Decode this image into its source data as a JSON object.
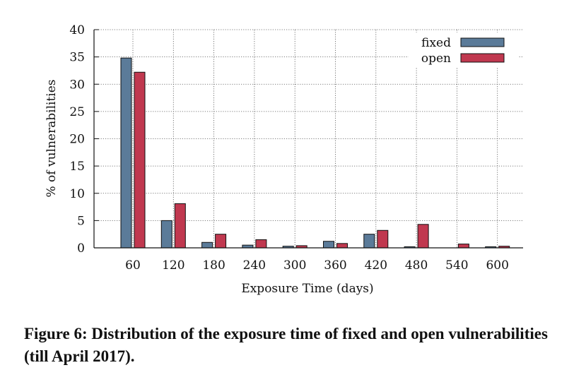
{
  "chart_data": {
    "type": "bar",
    "categories": [
      "60",
      "120",
      "180",
      "240",
      "300",
      "360",
      "420",
      "480",
      "540",
      "600"
    ],
    "series": [
      {
        "name": "fixed",
        "color": "#5b7b99",
        "values": [
          34.8,
          5.0,
          1.0,
          0.5,
          0.3,
          1.2,
          2.5,
          0.2,
          0.0,
          0.2
        ]
      },
      {
        "name": "open",
        "color": "#c0384f",
        "values": [
          32.2,
          8.1,
          2.5,
          1.5,
          0.4,
          0.8,
          3.2,
          4.3,
          0.7,
          0.3
        ]
      }
    ],
    "xlabel": "Exposure Time (days)",
    "ylabel": "% of vulnerabilities",
    "ylim": [
      0,
      40
    ],
    "yticks": [
      0,
      5,
      10,
      15,
      20,
      25,
      30,
      35,
      40
    ],
    "grid": true,
    "legend_position": "top-right"
  },
  "caption": "Figure 6: Distribution of the exposure time of fixed and open vulnerabilities (till April 2017)."
}
